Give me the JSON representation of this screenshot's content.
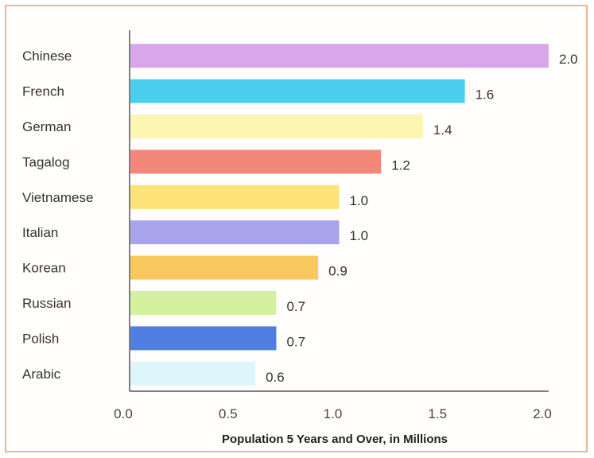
{
  "chart_data": {
    "type": "bar",
    "orientation": "horizontal",
    "categories": [
      "Chinese",
      "French",
      "German",
      "Tagalog",
      "Vietnamese",
      "Italian",
      "Korean",
      "Russian",
      "Polish",
      "Arabic"
    ],
    "values": [
      2.0,
      1.6,
      1.4,
      1.2,
      1.0,
      1.0,
      0.9,
      0.7,
      0.7,
      0.6
    ],
    "data_labels": [
      "2.0",
      "1.6",
      "1.4",
      "1.2",
      "1.0",
      "1.0",
      "0.9",
      "0.7",
      "0.7",
      "0.6"
    ],
    "bar_colors": [
      "#d9a6ec",
      "#4ccfee",
      "#fdf6b2",
      "#f2877a",
      "#fde37a",
      "#a8a4ec",
      "#f9c85c",
      "#d4f29e",
      "#4e7fe0",
      "#def5fb"
    ],
    "xlabel": "Population 5 Years and Over, in Millions",
    "xlim": [
      0,
      2.0
    ],
    "xticks": [
      "0.0",
      "0.5",
      "1.0",
      "1.5",
      "2.0"
    ],
    "grid": false,
    "legend": false
  }
}
